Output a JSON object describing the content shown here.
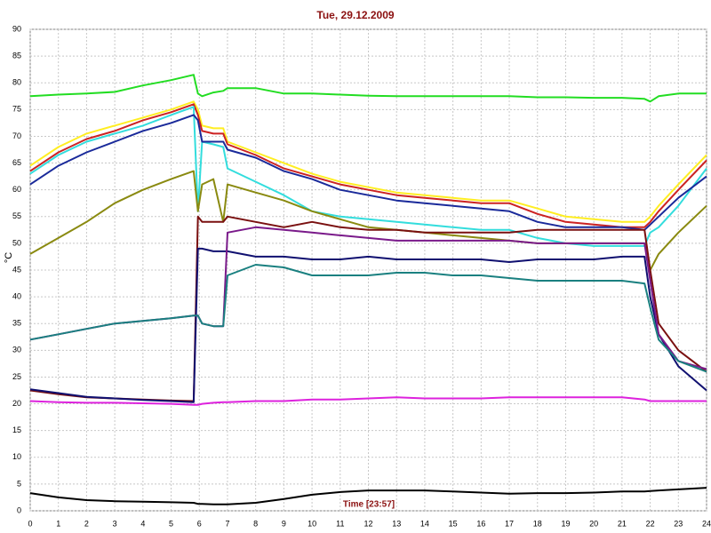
{
  "chart_data": {
    "type": "line",
    "title": "Tue, 29.12.2009",
    "y_label": "°C",
    "x_label": "Time [23:57]",
    "x": [
      0,
      1,
      2,
      3,
      4,
      5,
      5.8,
      5.95,
      6.1,
      6.5,
      6.85,
      7,
      8,
      9,
      10,
      11,
      12,
      13,
      14,
      15,
      16,
      17,
      18,
      19,
      20,
      21,
      21.8,
      22,
      22.3,
      23,
      24
    ],
    "series": [
      {
        "color": "#22dd22",
        "values": [
          77.5,
          77.8,
          78,
          78.3,
          79.5,
          80.5,
          81.5,
          78,
          77.5,
          78.2,
          78.5,
          79,
          79,
          78,
          78,
          77.8,
          77.6,
          77.5,
          77.5,
          77.5,
          77.5,
          77.5,
          77.3,
          77.3,
          77.2,
          77.2,
          77,
          76.5,
          77.5,
          78,
          78
        ]
      },
      {
        "color": "#ffee22",
        "values": [
          64.5,
          68,
          70.5,
          72,
          73.5,
          75,
          76.5,
          75,
          72,
          71.5,
          71.5,
          69,
          67,
          65,
          63,
          61.5,
          60.5,
          59.5,
          59,
          58.5,
          58,
          58,
          56.5,
          55,
          54.5,
          54,
          54,
          55,
          57,
          61,
          66.5
        ]
      },
      {
        "color": "#cc2222",
        "values": [
          63.5,
          67,
          69.5,
          71,
          73,
          74.5,
          76,
          74,
          71,
          70.5,
          70.5,
          68.5,
          66.5,
          64,
          62.5,
          61,
          60,
          59,
          58.5,
          58,
          57.5,
          57.5,
          55.5,
          54,
          53.5,
          53,
          53,
          54,
          56,
          60,
          65.5
        ]
      },
      {
        "color": "#33dddd",
        "values": [
          63,
          66.5,
          69,
          70.5,
          72,
          74,
          75.5,
          56,
          69,
          68.5,
          68,
          64,
          61.5,
          59,
          56,
          55,
          54.5,
          54,
          53.5,
          53,
          52.5,
          52.5,
          51,
          50,
          49.5,
          49.5,
          49.5,
          52,
          53,
          57,
          64
        ]
      },
      {
        "color": "#1a2a9a",
        "values": [
          61,
          64.5,
          67,
          69,
          71,
          72.5,
          74,
          73,
          69,
          69,
          69,
          67.5,
          66,
          63.5,
          62,
          60,
          59,
          58,
          57.5,
          57,
          56.5,
          56,
          54,
          53,
          53,
          53,
          52.5,
          53.5,
          55,
          58.5,
          62.5
        ]
      },
      {
        "color": "#8a8a10",
        "values": [
          48,
          51,
          54,
          57.5,
          60,
          62,
          63.5,
          56,
          61,
          62,
          54,
          61,
          59.5,
          58,
          56,
          54.5,
          53,
          52.5,
          52,
          51.5,
          51,
          50.5,
          50,
          50,
          50,
          50,
          50,
          45,
          48,
          52,
          57
        ]
      },
      {
        "color": "#7a1010",
        "values": [
          22.5,
          21.8,
          21.2,
          21,
          20.8,
          20.6,
          20.5,
          55,
          54,
          54,
          54,
          55,
          54,
          53,
          54,
          53,
          52.5,
          52.5,
          52,
          52,
          52,
          52,
          52.5,
          52.5,
          52.5,
          52.5,
          52.5,
          45,
          35,
          30,
          26
        ]
      },
      {
        "color": "#101070",
        "values": [
          22.7,
          22,
          21.3,
          21,
          20.7,
          20.5,
          20.3,
          49,
          49,
          48.5,
          48.5,
          48.5,
          47.5,
          47.5,
          47,
          47,
          47.5,
          47,
          47,
          47,
          47,
          46.5,
          47,
          47,
          47,
          47.5,
          47.5,
          40,
          33,
          27,
          22.5
        ]
      },
      {
        "color": "#7a1a8a",
        "values": [
          32,
          33,
          34,
          35,
          35.5,
          36,
          36.5,
          36.5,
          35,
          34.5,
          34.5,
          52,
          53,
          52.5,
          52,
          51.5,
          51,
          50.5,
          50.5,
          50.5,
          50.5,
          50.5,
          50,
          50,
          50,
          50,
          50,
          43,
          33,
          28,
          26.5
        ]
      },
      {
        "color": "#1a8080",
        "values": [
          32,
          33,
          34,
          35,
          35.5,
          36,
          36.5,
          36.5,
          35,
          34.5,
          34.5,
          44,
          46,
          45.5,
          44,
          44,
          44,
          44.5,
          44.5,
          44,
          44,
          43.5,
          43,
          43,
          43,
          43,
          42.5,
          38,
          32,
          28,
          26
        ]
      },
      {
        "color": "#dd22dd",
        "values": [
          20.5,
          20.3,
          20.2,
          20.2,
          20.1,
          20,
          19.8,
          19.8,
          20,
          20.2,
          20.3,
          20.3,
          20.5,
          20.5,
          20.8,
          20.8,
          21,
          21.2,
          21,
          21,
          21,
          21.2,
          21.2,
          21.2,
          21.2,
          21.2,
          20.8,
          20.5,
          20.5,
          20.5,
          20.5
        ]
      },
      {
        "color": "#000000",
        "values": [
          3.3,
          2.5,
          2,
          1.8,
          1.7,
          1.6,
          1.5,
          1.3,
          1.3,
          1.2,
          1.2,
          1.2,
          1.5,
          2.2,
          3,
          3.5,
          3.8,
          3.8,
          3.8,
          3.6,
          3.4,
          3.2,
          3.3,
          3.3,
          3.4,
          3.6,
          3.6,
          3.7,
          3.8,
          4,
          4.3
        ]
      }
    ],
    "xlim": [
      0,
      24
    ],
    "ylim": [
      0,
      90
    ],
    "xticks": [
      0,
      1,
      2,
      3,
      4,
      5,
      6,
      7,
      8,
      9,
      10,
      11,
      12,
      13,
      14,
      15,
      16,
      17,
      18,
      19,
      20,
      21,
      22,
      23,
      24
    ],
    "yticks": [
      0,
      5,
      10,
      15,
      20,
      25,
      30,
      35,
      40,
      45,
      50,
      55,
      60,
      65,
      70,
      75,
      80,
      85,
      90
    ],
    "grid": true
  }
}
